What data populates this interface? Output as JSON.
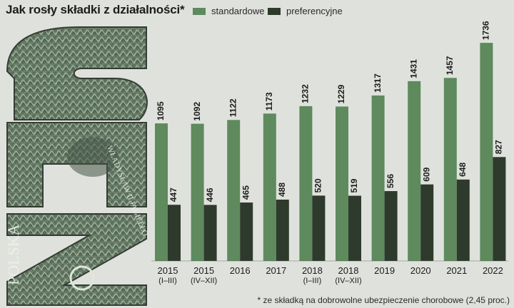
{
  "chart_data": {
    "type": "bar",
    "title": "Jak rosły składki z działalności*",
    "categories": [
      [
        "2015",
        "(I–III)"
      ],
      [
        "2015",
        "(IV–XII)"
      ],
      [
        "2016"
      ],
      [
        "2017"
      ],
      [
        "2018",
        "(I–III)"
      ],
      [
        "2018",
        "(IV–XII)"
      ],
      [
        "2019"
      ],
      [
        "2020"
      ],
      [
        "2021"
      ],
      [
        "2022"
      ]
    ],
    "series": [
      {
        "name": "standardowe",
        "color": "#5e8a5e",
        "values": [
          1095,
          1092,
          1122,
          1173,
          1232,
          1229,
          1317,
          1431,
          1457,
          1736
        ]
      },
      {
        "name": "preferencyjne",
        "color": "#2e3a2c",
        "values": [
          447,
          446,
          465,
          488,
          520,
          519,
          556,
          609,
          648,
          827
        ]
      }
    ],
    "ylim": [
      0,
      1850
    ],
    "grid": false,
    "legend_position": "top",
    "footnote": "* ze składką na dobrowolne ubezpieczenie chorobowe (2,45 proc.)"
  },
  "decoration": {
    "logo_text": "ZUS",
    "banknote_text": [
      "WŁADYSŁAW II JAGIEŁŁO",
      "POLSKA"
    ]
  }
}
